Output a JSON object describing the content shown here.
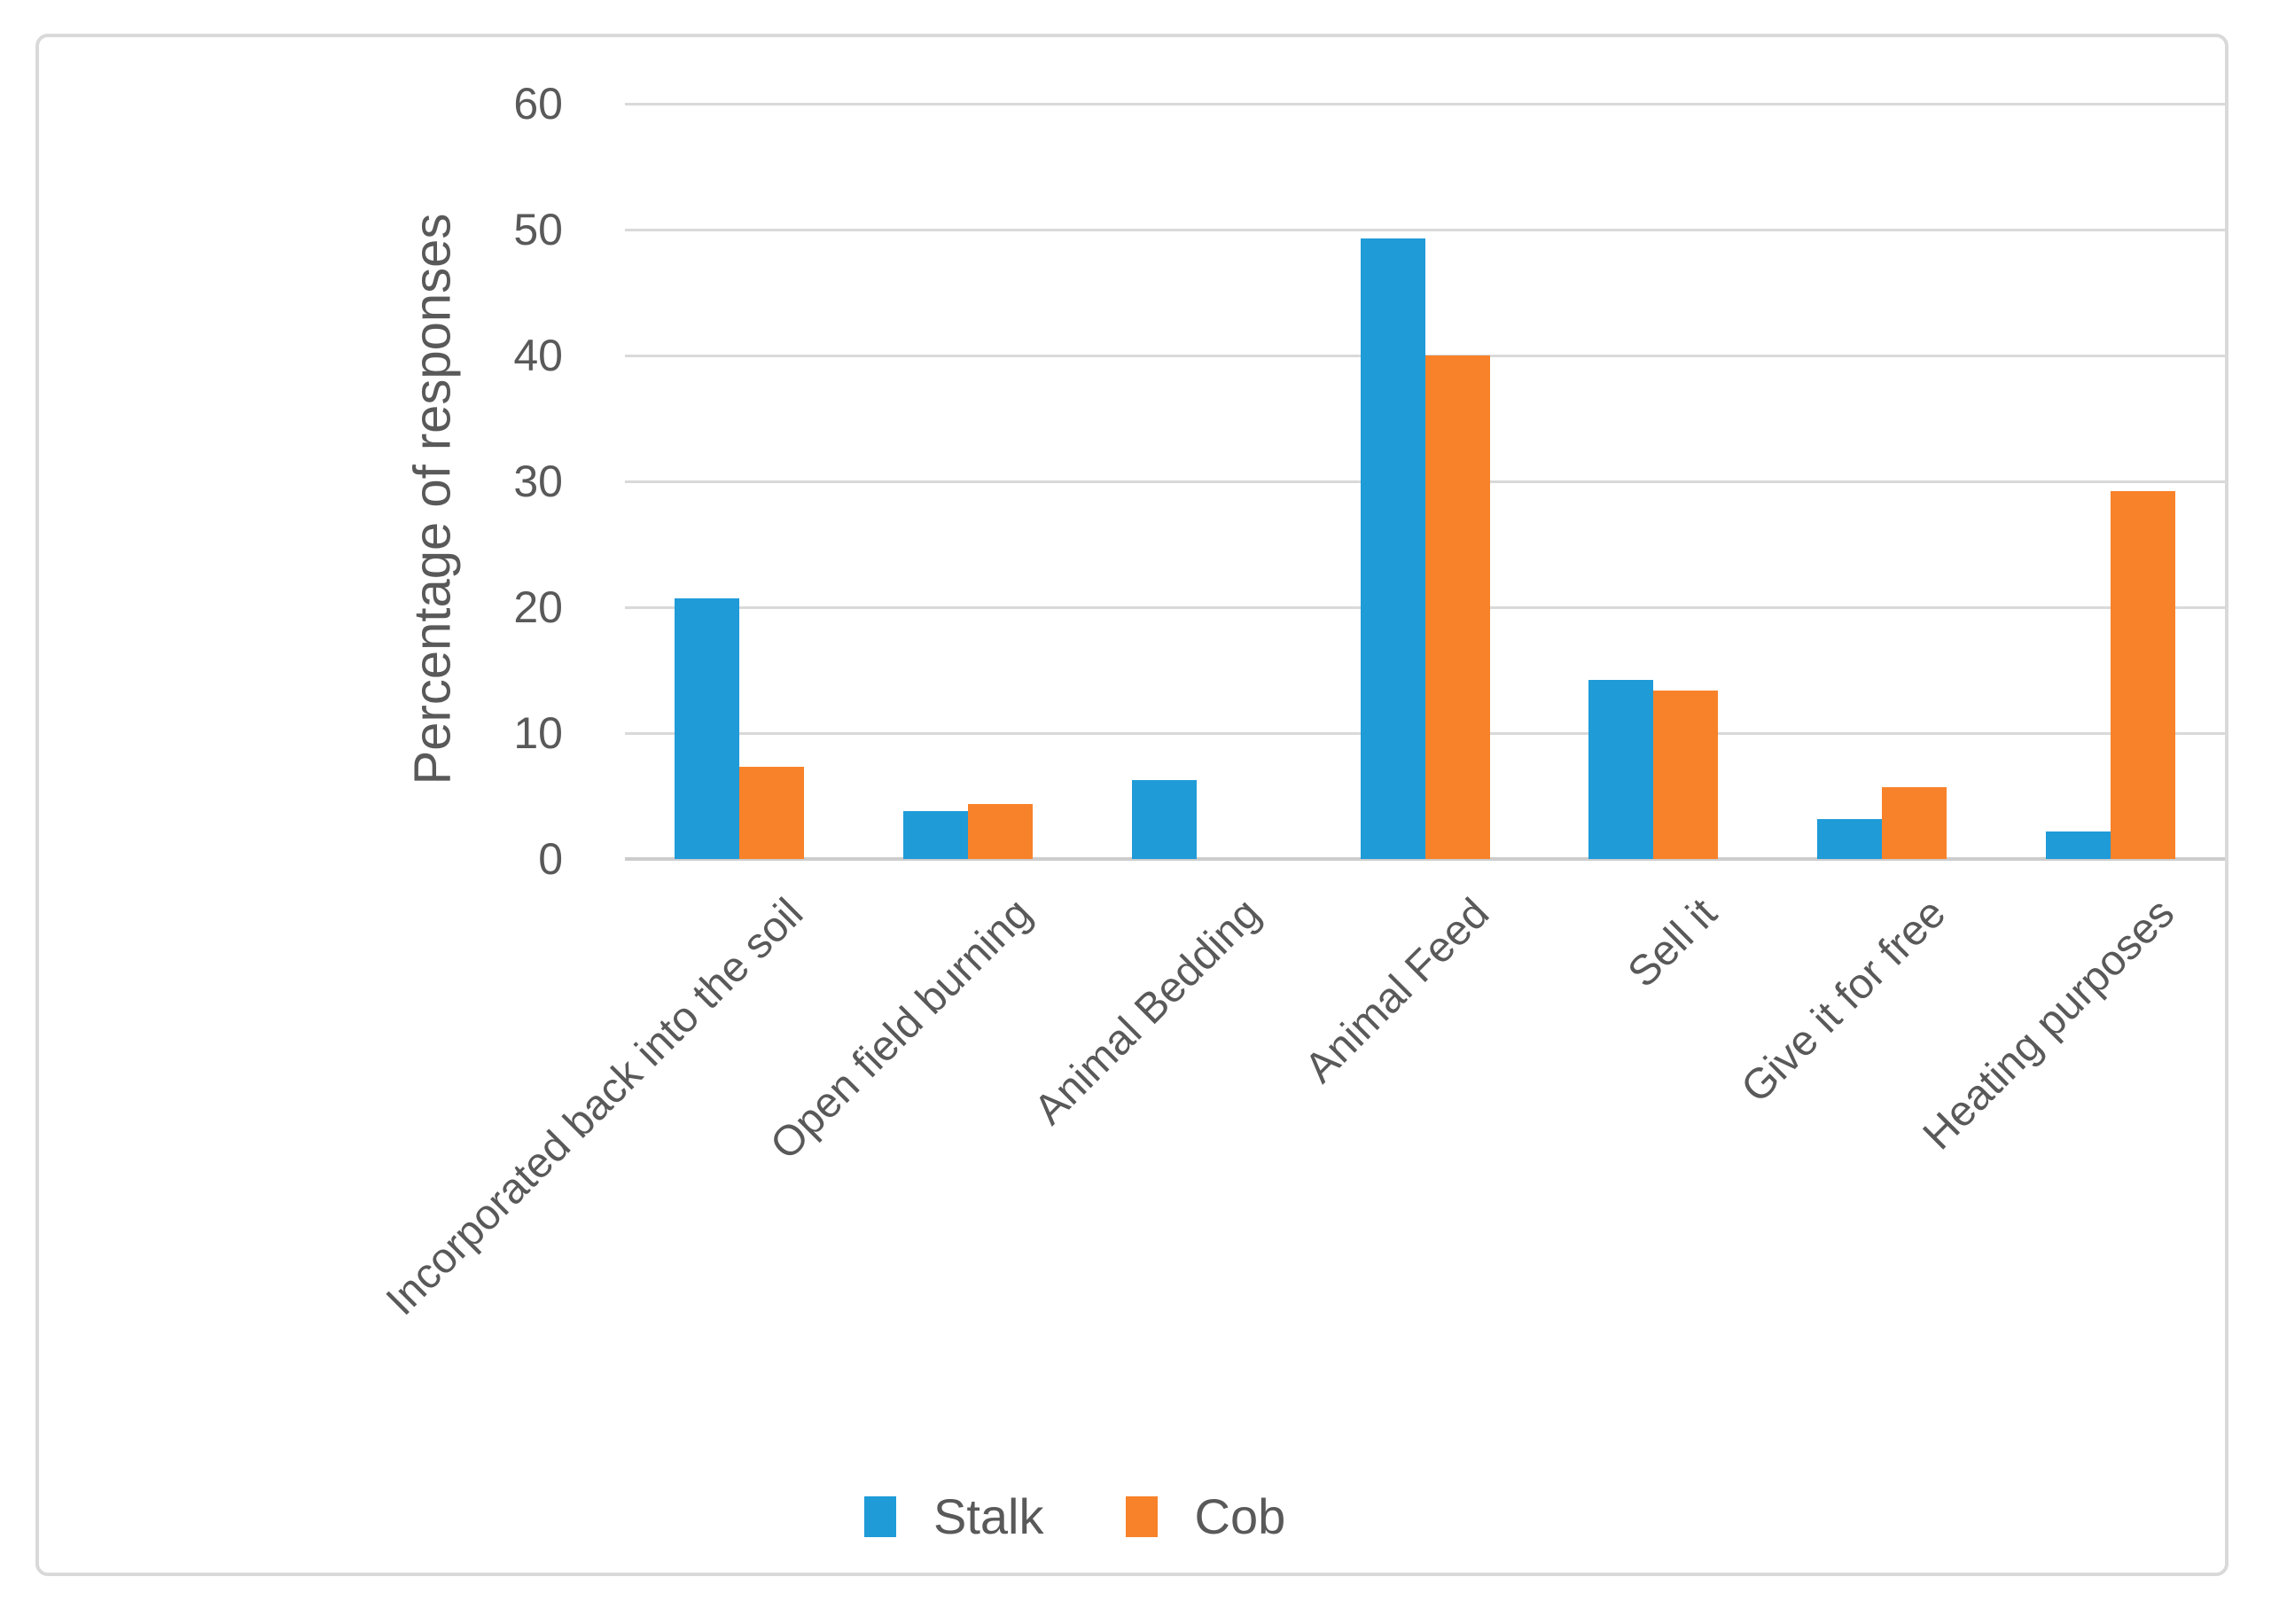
{
  "chart_data": {
    "type": "bar",
    "title": "",
    "categories": [
      "Incorporated back into the soil",
      "Open field burning",
      "Animal Bedding",
      "Animal Feed",
      "Sell it",
      "Give it for free",
      "Heating purposes"
    ],
    "series": [
      {
        "name": "Stalk",
        "color": "#1f9bd8",
        "values": [
          20.7,
          3.8,
          6.3,
          49.3,
          14.2,
          3.2,
          2.2
        ]
      },
      {
        "name": "Cob",
        "color": "#f8822a",
        "values": [
          7.3,
          4.4,
          0,
          40,
          13.4,
          5.7,
          29.2
        ]
      }
    ],
    "xlabel": "",
    "ylabel": "Percentage of responses",
    "ylim": [
      0,
      60
    ],
    "yticks": [
      0,
      10,
      20,
      30,
      40,
      50,
      60
    ],
    "grid": "horizontal",
    "legend_position": "bottom",
    "colors": {
      "gridline": "#d9d9d9",
      "axis_line": "#cccccc",
      "text": "#595959",
      "frame_border": "#d9d9d9",
      "background": "#ffffff"
    }
  }
}
